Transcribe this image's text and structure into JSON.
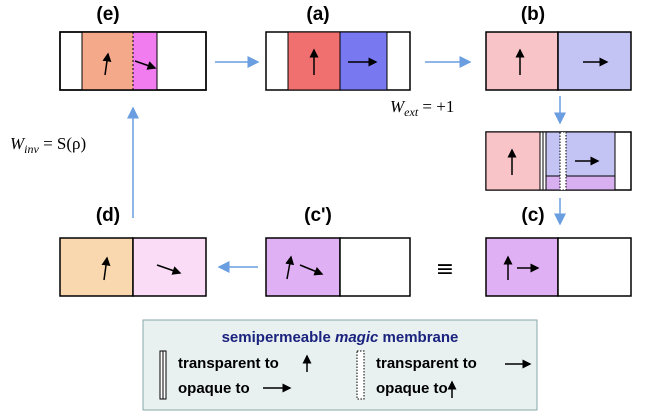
{
  "panels": {
    "e": "(e)",
    "a": "(a)",
    "b": "(b)",
    "c": "(c)",
    "c_prime": "(c')",
    "d": "(d)"
  },
  "w_ext": {
    "symbol": "W",
    "sub": "ext",
    "rest": " = +1"
  },
  "w_inv": {
    "symbol": "W",
    "sub": "inv",
    "rest": " = S(ρ)"
  },
  "equiv": "≡",
  "legend": {
    "title": [
      "semipermeable ",
      "magic",
      " membrane"
    ],
    "left": {
      "line1": "transparent to",
      "line2": "opaque to"
    },
    "right": {
      "line1": "transparent to",
      "line2": "opaque to"
    }
  }
}
